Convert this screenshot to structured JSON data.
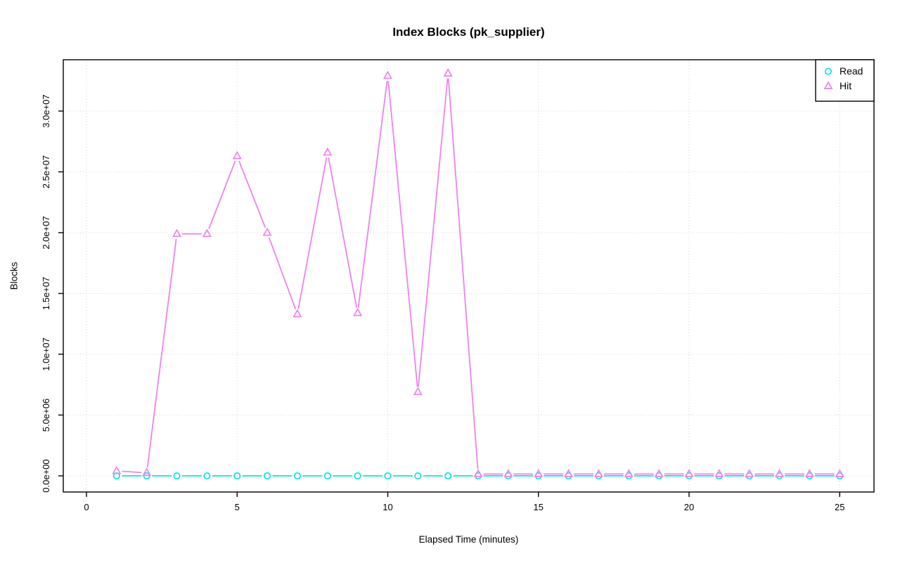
{
  "chart_data": {
    "type": "line",
    "title": "Index Blocks (pk_supplier)",
    "xlabel": "Elapsed Time (minutes)",
    "ylabel": "Blocks",
    "grid": true,
    "legend_position": "top-right",
    "xlim": [
      0,
      25
    ],
    "ylim": [
      0,
      34000000
    ],
    "xticks": [
      0,
      5,
      10,
      15,
      20,
      25
    ],
    "yticks": [
      {
        "value": 0,
        "label": "0.0e+00"
      },
      {
        "value": 5000000,
        "label": "5.0e+06"
      },
      {
        "value": 10000000,
        "label": "1.0e+07"
      },
      {
        "value": 15000000,
        "label": "1.5e+07"
      },
      {
        "value": 20000000,
        "label": "2.0e+07"
      },
      {
        "value": 25000000,
        "label": "2.5e+07"
      },
      {
        "value": 30000000,
        "label": "3.0e+07"
      }
    ],
    "x": [
      1,
      2,
      3,
      4,
      5,
      6,
      7,
      8,
      9,
      10,
      11,
      12,
      13,
      14,
      15,
      16,
      17,
      18,
      19,
      20,
      21,
      22,
      23,
      24,
      25
    ],
    "series": [
      {
        "name": "Read",
        "color": "#00E5EE",
        "marker": "circle",
        "values": [
          0,
          0,
          0,
          0,
          0,
          0,
          0,
          0,
          0,
          0,
          0,
          0,
          0,
          0,
          0,
          0,
          0,
          0,
          0,
          0,
          0,
          0,
          0,
          0,
          0
        ]
      },
      {
        "name": "Hit",
        "color": "#EE82EE",
        "marker": "triangle",
        "values": [
          400000,
          250000,
          19900000,
          19900000,
          26300000,
          20000000,
          13300000,
          26600000,
          13400000,
          32900000,
          6900000,
          33100000,
          150000,
          150000,
          150000,
          150000,
          150000,
          150000,
          150000,
          150000,
          150000,
          150000,
          150000,
          150000,
          150000
        ]
      }
    ]
  }
}
